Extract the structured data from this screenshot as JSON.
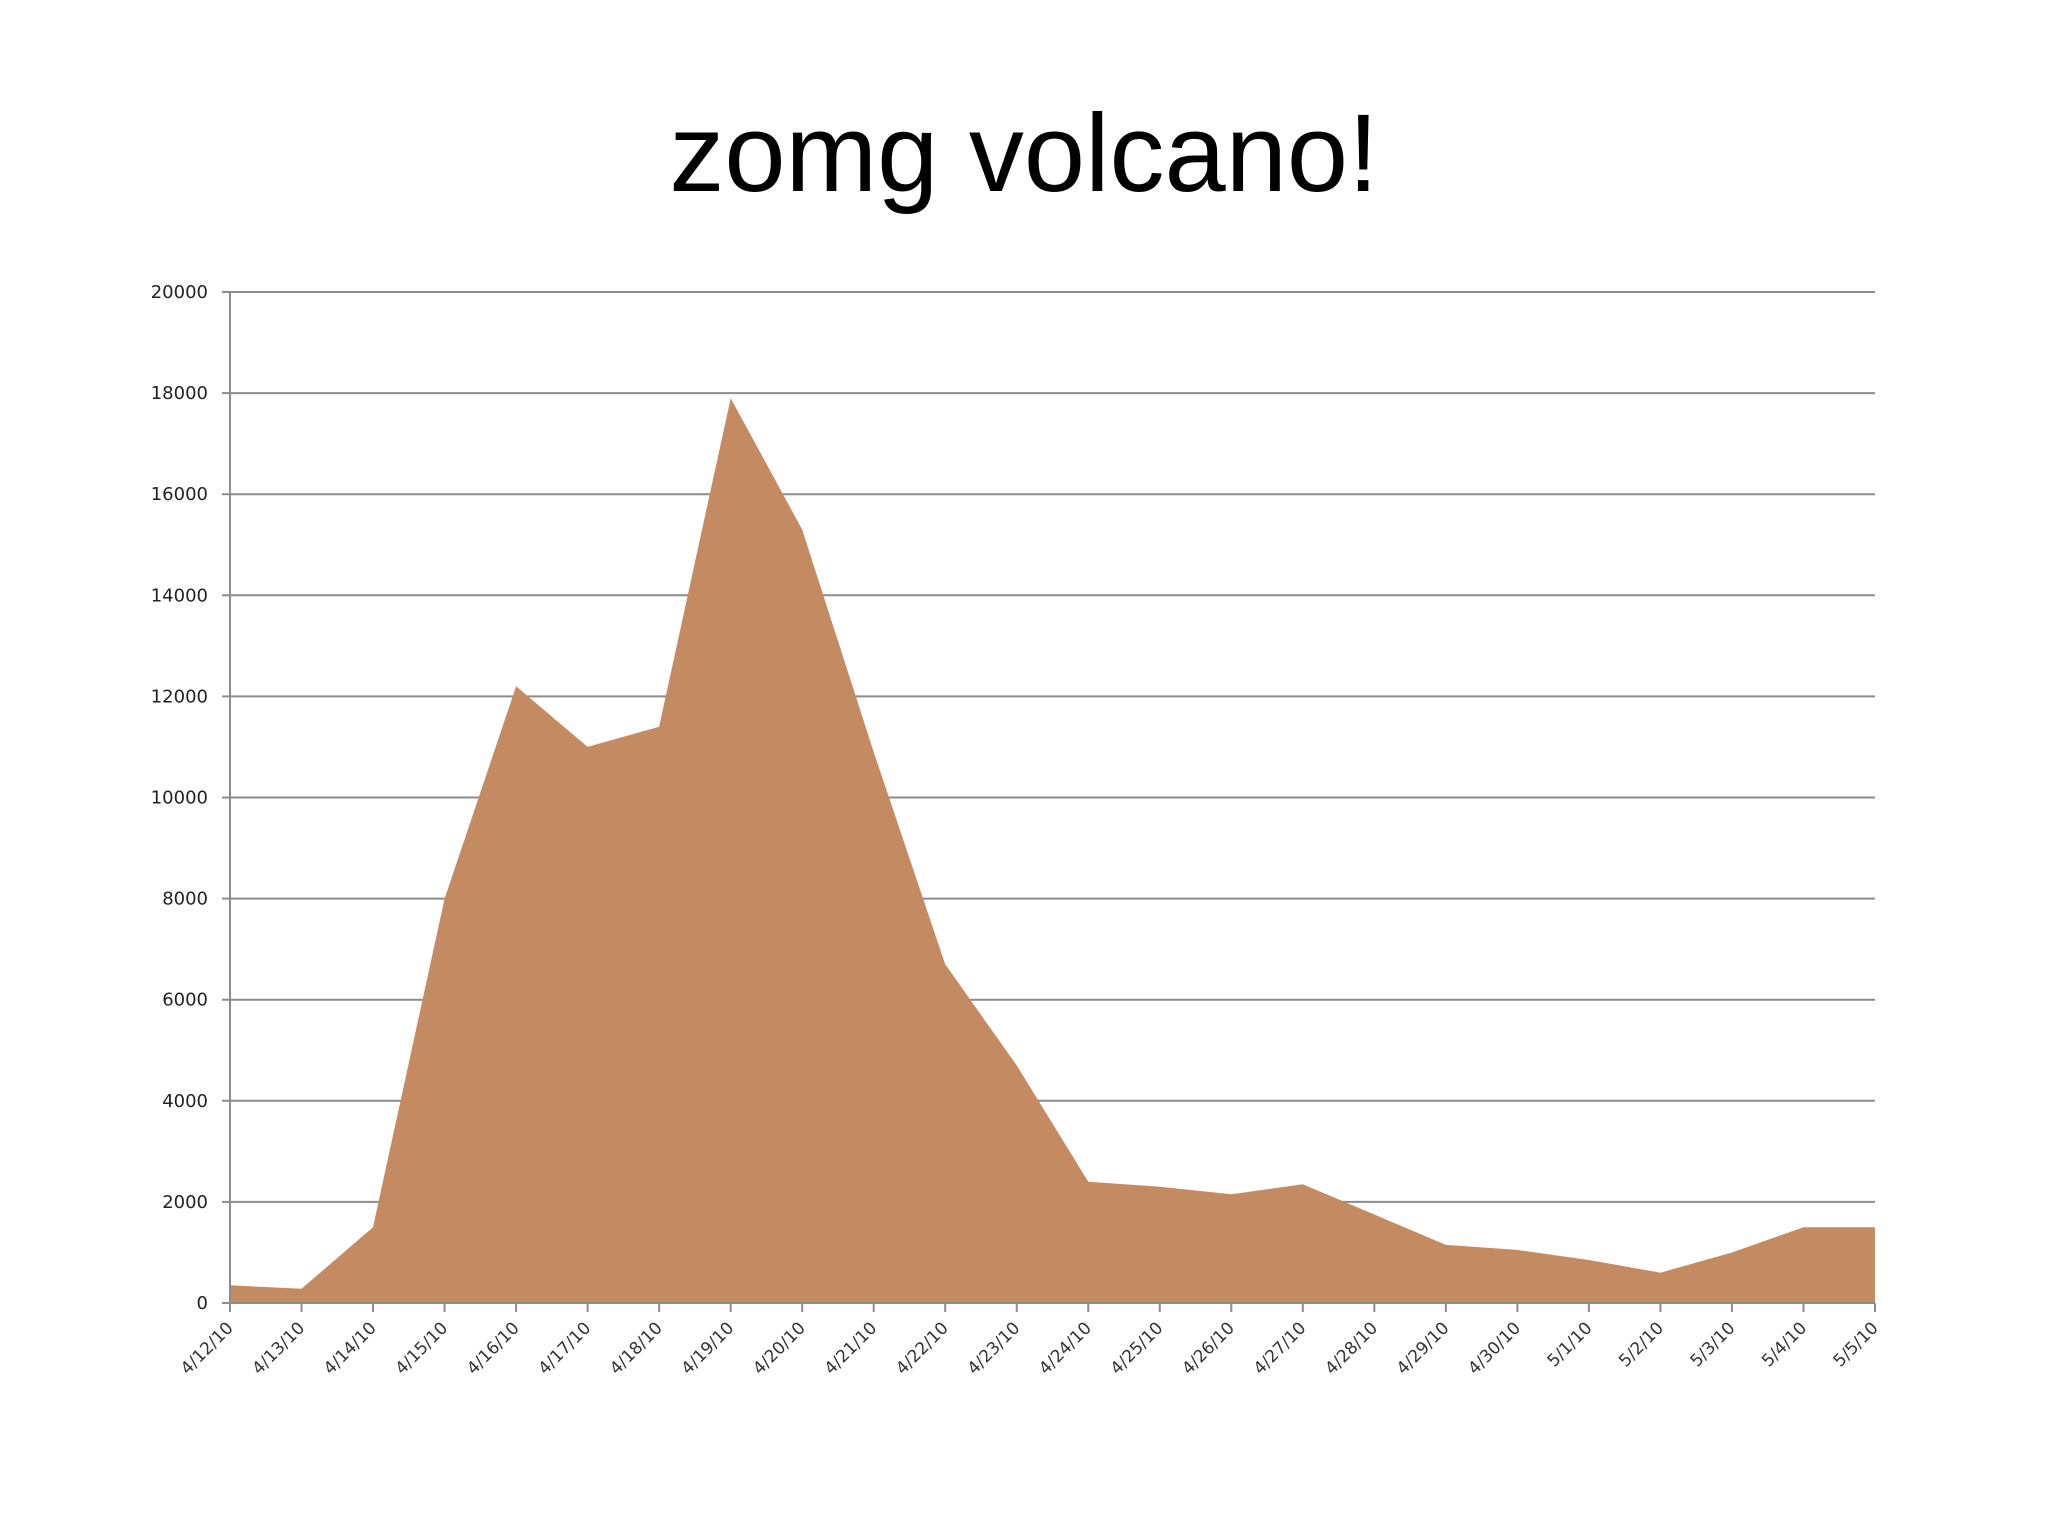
{
  "slide": {
    "title": "zomg volcano!"
  },
  "chart_data": {
    "type": "area",
    "title": "zomg volcano!",
    "xlabel": "",
    "ylabel": "",
    "ylim": [
      0,
      20000
    ],
    "yticks": [
      0,
      2000,
      4000,
      6000,
      8000,
      10000,
      12000,
      14000,
      16000,
      18000,
      20000
    ],
    "grid": true,
    "legend": "none",
    "fill_color": "#c48b62",
    "grid_color": "#8c8c8c",
    "x": [
      "4/12/10",
      "4/13/10",
      "4/14/10",
      "4/15/10",
      "4/16/10",
      "4/17/10",
      "4/18/10",
      "4/19/10",
      "4/20/10",
      "4/21/10",
      "4/22/10",
      "4/23/10",
      "4/24/10",
      "4/25/10",
      "4/26/10",
      "4/27/10",
      "4/28/10",
      "4/29/10",
      "4/30/10",
      "5/1/10",
      "5/2/10",
      "5/3/10",
      "5/4/10",
      "5/5/10"
    ],
    "series": [
      {
        "values": [
          350,
          280,
          1500,
          8000,
          12200,
          11000,
          11400,
          17900,
          15300,
          10900,
          6700,
          4700,
          2400,
          2300,
          2150,
          2350,
          1750,
          1150,
          1050,
          850,
          600,
          1000,
          1500,
          1500
        ]
      }
    ]
  }
}
